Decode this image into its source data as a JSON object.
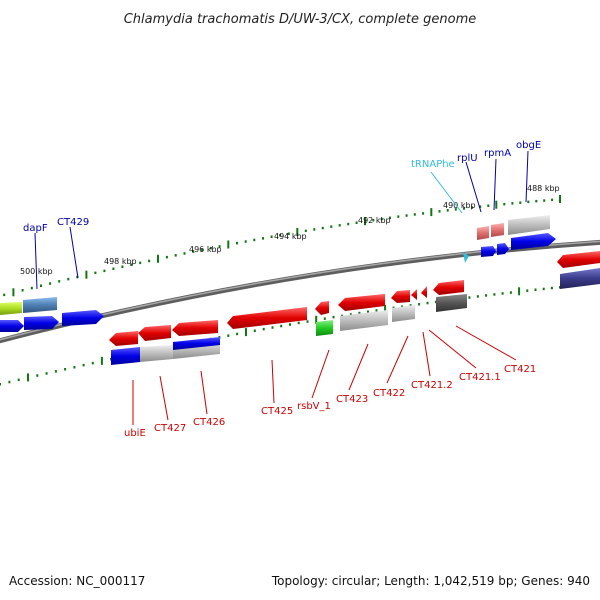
{
  "title": "Chlamydia trachomatis D/UW-3/CX, complete genome",
  "footer": {
    "accession": "Accession: NC_000117",
    "stats": "Topology: circular; Length: 1,042,519 bp; Genes: 940"
  },
  "scale_labels": [
    "488 kbp",
    "490 kbp",
    "492 kbp",
    "494 kbp",
    "496 kbp",
    "498 kbp",
    "500 kbp"
  ],
  "top_gene_labels": [
    "tRNAPhe",
    "rplU",
    "rpmA",
    "obgE",
    "dapF",
    "CT429"
  ],
  "bottom_gene_labels": [
    "ubiE",
    "CT427",
    "CT426",
    "CT425",
    "rsbV_1",
    "CT423",
    "CT422",
    "CT421.2",
    "CT421.1",
    "CT421"
  ],
  "colors": {
    "forward_gene": "#0000ee",
    "reverse_gene": "#ee0000",
    "trna": "#33bbdd",
    "rrna_like": "#33cc33",
    "backbone": "#777777",
    "tick": "#117711"
  }
}
